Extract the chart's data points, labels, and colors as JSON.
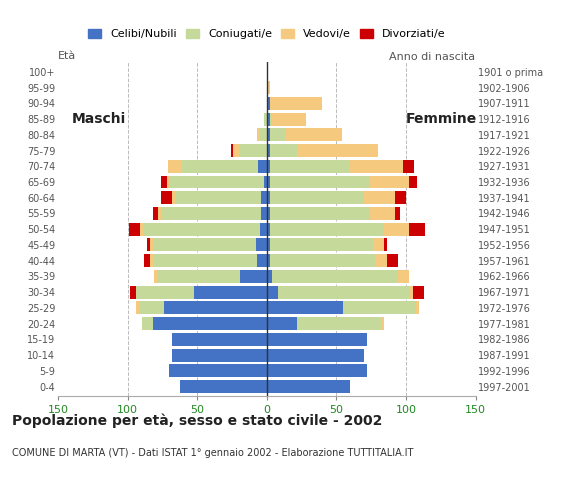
{
  "age_groups": [
    "0-4",
    "5-9",
    "10-14",
    "15-19",
    "20-24",
    "25-29",
    "30-34",
    "35-39",
    "40-44",
    "45-49",
    "50-54",
    "55-59",
    "60-64",
    "65-69",
    "70-74",
    "75-79",
    "80-84",
    "85-89",
    "90-94",
    "95-99",
    "100+"
  ],
  "birth_years": [
    "1997-2001",
    "1992-1996",
    "1987-1991",
    "1982-1986",
    "1977-1981",
    "1972-1976",
    "1967-1971",
    "1962-1966",
    "1957-1961",
    "1952-1956",
    "1947-1951",
    "1942-1946",
    "1937-1941",
    "1932-1936",
    "1927-1931",
    "1922-1926",
    "1917-1921",
    "1912-1916",
    "1907-1911",
    "1902-1906",
    "1901 o prima"
  ],
  "males": {
    "celibe": [
      62,
      70,
      68,
      68,
      82,
      74,
      52,
      19,
      7,
      8,
      5,
      4,
      4,
      2,
      6,
      0,
      0,
      0,
      0,
      0,
      0
    ],
    "coniugato": [
      0,
      0,
      0,
      0,
      8,
      18,
      42,
      60,
      75,
      74,
      84,
      72,
      62,
      68,
      55,
      20,
      5,
      2,
      0,
      0,
      0
    ],
    "vedovo": [
      0,
      0,
      0,
      0,
      0,
      2,
      0,
      2,
      2,
      2,
      2,
      2,
      2,
      2,
      10,
      4,
      2,
      0,
      0,
      0,
      0
    ],
    "divorziato": [
      0,
      0,
      0,
      0,
      0,
      0,
      4,
      0,
      4,
      2,
      8,
      4,
      8,
      4,
      0,
      2,
      0,
      0,
      0,
      0,
      0
    ]
  },
  "females": {
    "nubile": [
      60,
      72,
      70,
      72,
      22,
      55,
      8,
      4,
      2,
      2,
      2,
      2,
      2,
      2,
      2,
      2,
      2,
      2,
      2,
      0,
      0
    ],
    "coniugata": [
      0,
      0,
      0,
      0,
      60,
      52,
      95,
      90,
      76,
      74,
      82,
      72,
      68,
      72,
      58,
      20,
      12,
      2,
      0,
      0,
      0
    ],
    "vedova": [
      0,
      0,
      0,
      0,
      2,
      2,
      2,
      8,
      8,
      8,
      18,
      18,
      22,
      28,
      38,
      58,
      40,
      24,
      38,
      2,
      0
    ],
    "divorziata": [
      0,
      0,
      0,
      0,
      0,
      0,
      8,
      0,
      8,
      2,
      12,
      4,
      8,
      6,
      8,
      0,
      0,
      0,
      0,
      0,
      0
    ]
  },
  "colors": {
    "celibe": "#4472c4",
    "coniugato": "#c5d99b",
    "vedovo": "#f5c97e",
    "divorziato": "#cc0000"
  },
  "title": "Popolazione per età, sesso e stato civile - 2002",
  "subtitle": "COMUNE DI MARTA (VT) - Dati ISTAT 1° gennaio 2002 - Elaborazione TUTTITALIA.IT",
  "legend_labels": [
    "Celibi/Nubili",
    "Coniugati/e",
    "Vedovi/e",
    "Divorziati/e"
  ],
  "xlim": 150,
  "background_color": "#ffffff",
  "grid_color": "#bbbbbb"
}
